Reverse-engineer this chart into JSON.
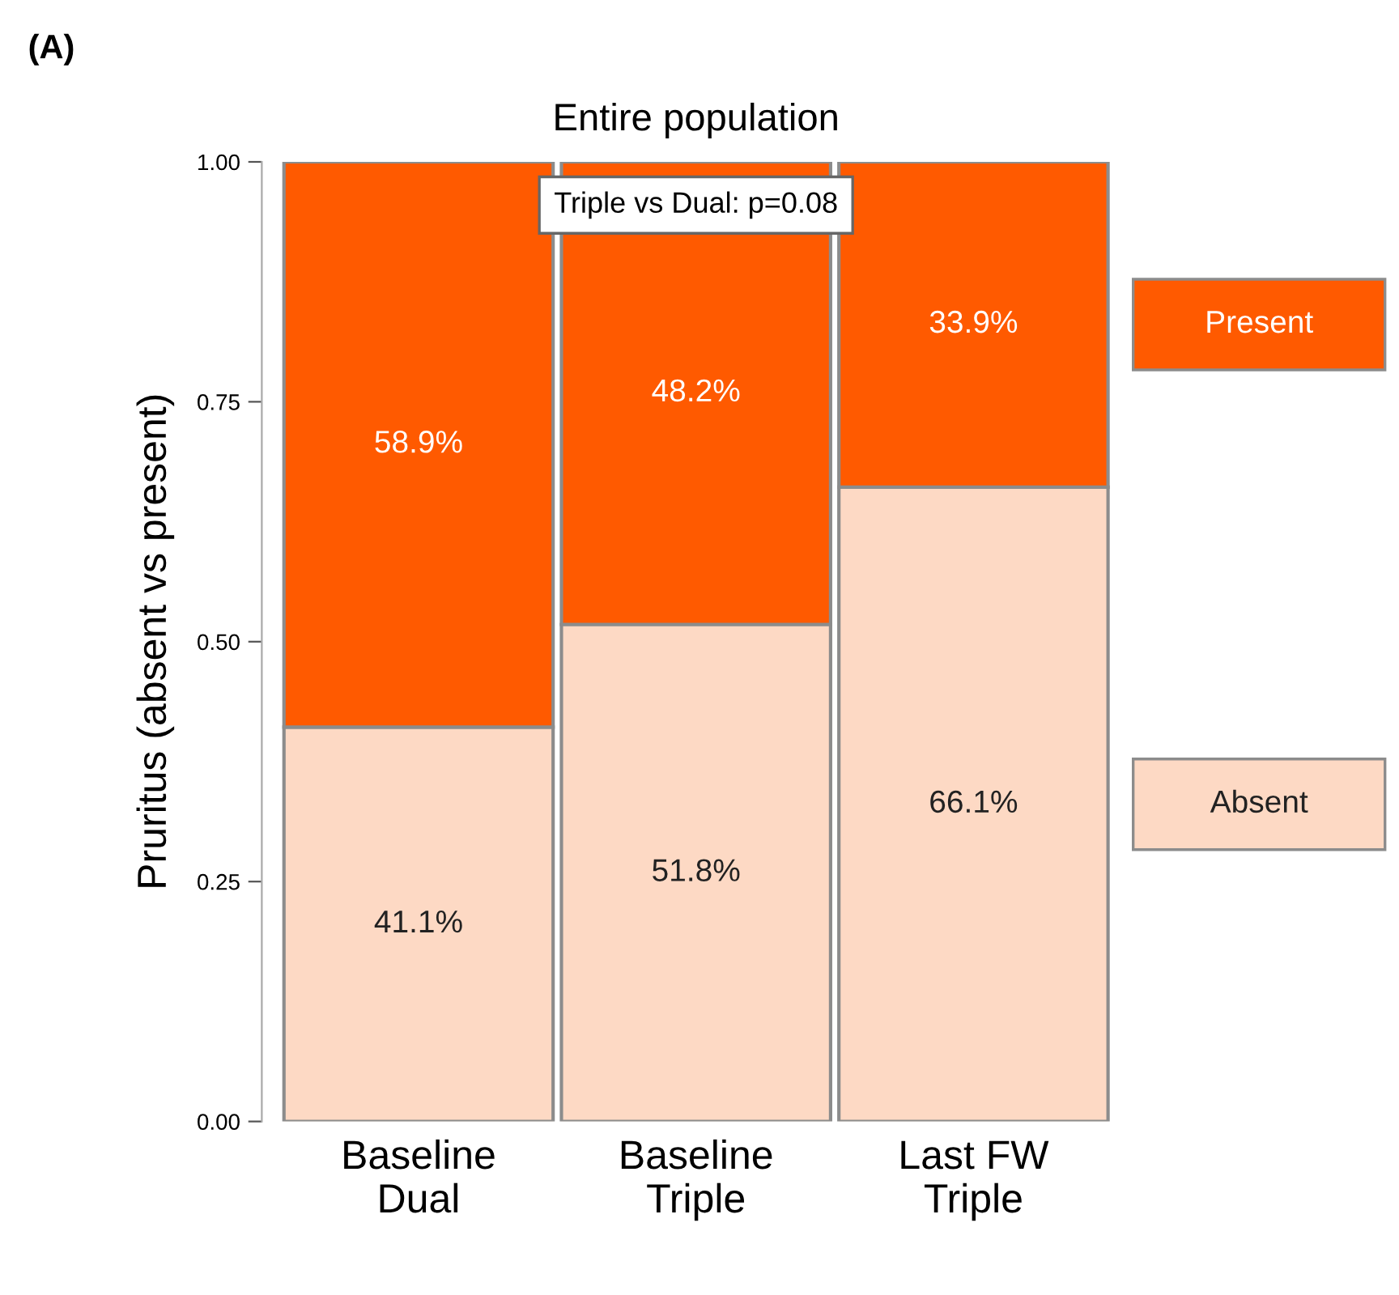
{
  "chart_data": {
    "type": "bar",
    "stacked": true,
    "title": "Entire population",
    "ylabel": "Pruritus (absent vs present)",
    "categories": [
      "Baseline\nDual",
      "Baseline\nTriple",
      "Last FW\nTriple"
    ],
    "series": [
      {
        "name": "Absent",
        "color": "#fdd9c4",
        "values": [
          0.411,
          0.518,
          0.661
        ],
        "value_labels": [
          "41.1%",
          "51.8%",
          "66.1%"
        ]
      },
      {
        "name": "Present",
        "color": "#ff5a00",
        "values": [
          0.589,
          0.482,
          0.339
        ],
        "value_labels": [
          "58.9%",
          "48.2%",
          "33.9%"
        ]
      }
    ],
    "ylim": [
      0,
      1
    ],
    "yticks": [
      {
        "value": 0,
        "label": "0.00"
      },
      {
        "value": 0.25,
        "label": "0.25"
      },
      {
        "value": 0.5,
        "label": "0.50"
      },
      {
        "value": 0.75,
        "label": "0.75"
      },
      {
        "value": 1,
        "label": "1.00"
      }
    ],
    "grid": false,
    "legend": "right",
    "annotations": [
      "(A)",
      "Triple vs Dual: p=0.08"
    ]
  }
}
